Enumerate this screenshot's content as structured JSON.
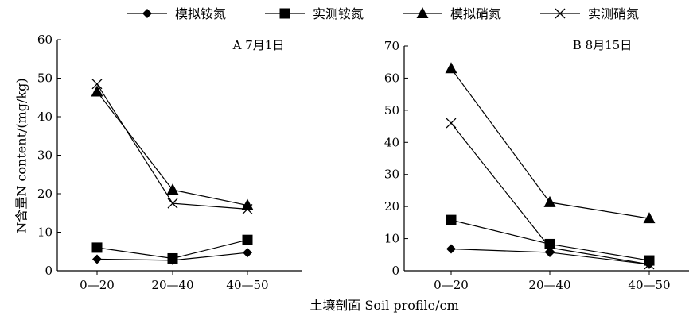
{
  "legend": [
    {
      "label": "模拟铵氮",
      "marker": "diamond"
    },
    {
      "label": "实测铵氮",
      "marker": "square"
    },
    {
      "label": "模拟硝氮",
      "marker": "triangle"
    },
    {
      "label": "实测硝氮",
      "marker": "x"
    }
  ],
  "xlabel": "土壤剖面 Soil profile/cm",
  "ylabel": "N含量N content/(mg/kg)",
  "chart_data": [
    {
      "type": "line",
      "title": "A  7月1日",
      "categories": [
        "0—20",
        "20—40",
        "40—50"
      ],
      "ylim": [
        0,
        60
      ],
      "yticks": [
        0,
        10,
        20,
        30,
        40,
        50,
        60
      ],
      "series": [
        {
          "name": "模拟铵氮",
          "marker": "diamond",
          "values": [
            3,
            2.7,
            4.7
          ]
        },
        {
          "name": "实测铵氮",
          "marker": "square",
          "values": [
            6,
            3.2,
            8
          ]
        },
        {
          "name": "模拟硝氮",
          "marker": "triangle",
          "values": [
            46.5,
            21,
            17
          ]
        },
        {
          "name": "实测硝氮",
          "marker": "x",
          "values": [
            48.5,
            17.5,
            16
          ]
        }
      ]
    },
    {
      "type": "line",
      "title": "B  8月15日",
      "categories": [
        "0—20",
        "20—40",
        "40—50"
      ],
      "ylim": [
        0,
        70
      ],
      "yticks": [
        0,
        10,
        20,
        30,
        40,
        50,
        60,
        70
      ],
      "series": [
        {
          "name": "模拟铵氮",
          "marker": "diamond",
          "values": [
            6.8,
            5.7,
            2
          ]
        },
        {
          "name": "实测铵氮",
          "marker": "square",
          "values": [
            15.8,
            8.3,
            3.2
          ]
        },
        {
          "name": "模拟硝氮",
          "marker": "triangle",
          "values": [
            63,
            21.3,
            16.3
          ]
        },
        {
          "name": "实测硝氮",
          "marker": "x",
          "values": [
            46,
            7.2,
            2
          ]
        }
      ]
    }
  ]
}
